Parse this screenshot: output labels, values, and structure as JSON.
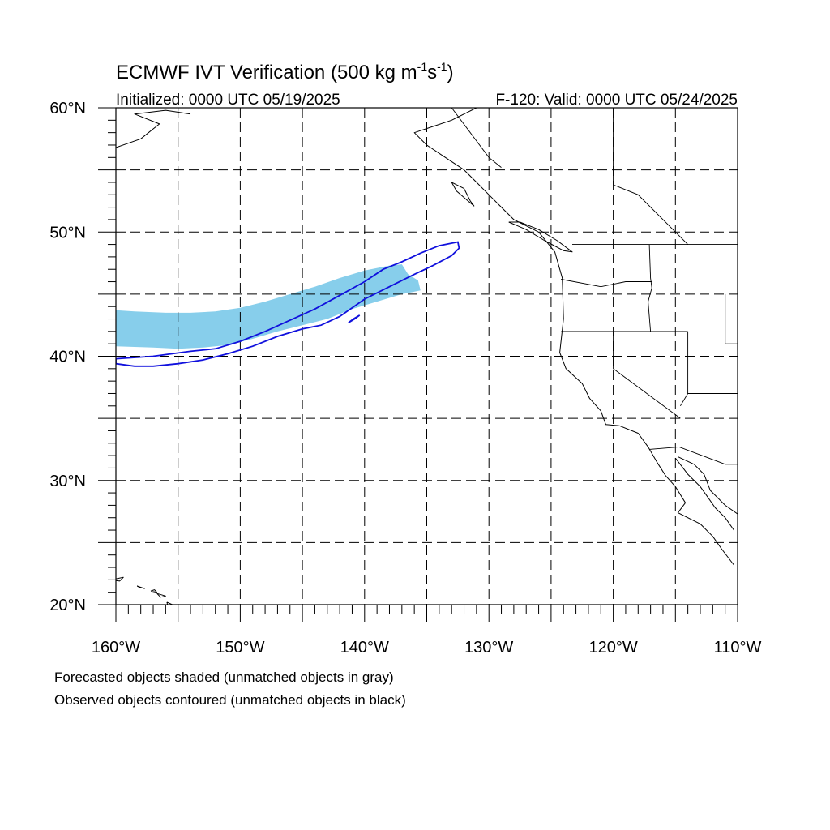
{
  "title": {
    "prefix": "ECMWF IVT Verification (500 kg m",
    "exp1": "-1",
    "mid": "s",
    "exp2": "-1",
    "suffix": ")"
  },
  "subtitle_left": "Initialized: 0000 UTC 05/19/2025",
  "subtitle_right": "F-120: Valid: 0000 UTC 05/24/2025",
  "map": {
    "lon_range": [
      -160,
      -110
    ],
    "lat_range": [
      20,
      60
    ],
    "lat_labels": [
      {
        "lat": 60,
        "text": "60°N"
      },
      {
        "lat": 50,
        "text": "50°N"
      },
      {
        "lat": 40,
        "text": "40°N"
      },
      {
        "lat": 30,
        "text": "30°N"
      },
      {
        "lat": 20,
        "text": "20°N"
      }
    ],
    "lon_labels": [
      {
        "lon": -160,
        "text": "160°W"
      },
      {
        "lon": -150,
        "text": "150°W"
      },
      {
        "lon": -140,
        "text": "140°W"
      },
      {
        "lon": -130,
        "text": "130°W"
      },
      {
        "lon": -120,
        "text": "120°W"
      },
      {
        "lon": -110,
        "text": "110°W"
      }
    ],
    "gridline_style": "dashed",
    "gridline_spacing_deg": 5,
    "colors": {
      "forecast_shade": "#87ceeb",
      "observed_contour": "#1010dd",
      "coastline": "#000000",
      "grid": "#000000"
    },
    "forecast_object": [
      [
        -160,
        43.7
      ],
      [
        -158.5,
        43.6
      ],
      [
        -156,
        43.5
      ],
      [
        -154,
        43.5
      ],
      [
        -152,
        43.6
      ],
      [
        -150,
        43.9
      ],
      [
        -148,
        44.4
      ],
      [
        -146,
        45.0
      ],
      [
        -144,
        45.6
      ],
      [
        -142,
        46.3
      ],
      [
        -140,
        46.9
      ],
      [
        -138,
        47.3
      ],
      [
        -137,
        47.4
      ],
      [
        -136.5,
        46.6
      ],
      [
        -135.7,
        46.1
      ],
      [
        -135.5,
        45.3
      ],
      [
        -137,
        45.0
      ],
      [
        -139,
        44.4
      ],
      [
        -141,
        43.8
      ],
      [
        -143,
        43.0
      ],
      [
        -145,
        42.5
      ],
      [
        -147,
        42.0
      ],
      [
        -149,
        41.4
      ],
      [
        -151,
        40.9
      ],
      [
        -153,
        40.7
      ],
      [
        -155,
        40.6
      ],
      [
        -157,
        40.7
      ],
      [
        -160,
        40.8
      ]
    ],
    "observed_object": [
      [
        -160,
        39.8
      ],
      [
        -157,
        40.0
      ],
      [
        -154,
        40.4
      ],
      [
        -152,
        40.6
      ],
      [
        -150,
        41.2
      ],
      [
        -148,
        42.0
      ],
      [
        -146,
        42.9
      ],
      [
        -144,
        43.8
      ],
      [
        -142,
        44.9
      ],
      [
        -140,
        46.0
      ],
      [
        -138.5,
        47.0
      ],
      [
        -137,
        47.6
      ],
      [
        -135.5,
        48.3
      ],
      [
        -134,
        48.9
      ],
      [
        -132.5,
        49.2
      ],
      [
        -132.4,
        48.7
      ],
      [
        -133,
        48.1
      ],
      [
        -134.5,
        47.3
      ],
      [
        -136,
        46.6
      ],
      [
        -138,
        45.6
      ],
      [
        -140,
        44.6
      ],
      [
        -142,
        43.2
      ],
      [
        -143.5,
        42.5
      ],
      [
        -145,
        42.2
      ],
      [
        -147,
        41.6
      ],
      [
        -149,
        40.8
      ],
      [
        -151,
        40.2
      ],
      [
        -153,
        39.7
      ],
      [
        -155,
        39.4
      ],
      [
        -157,
        39.2
      ],
      [
        -158.5,
        39.2
      ],
      [
        -160,
        39.4
      ]
    ],
    "observed_fragment": [
      [
        -141.3,
        42.7
      ],
      [
        -140.8,
        43.0
      ],
      [
        -140.4,
        43.3
      ],
      [
        -140.9,
        43.0
      ],
      [
        -141.3,
        42.7
      ]
    ],
    "coastline": [
      [
        -131.0,
        60.0
      ],
      [
        -133.0,
        59.0
      ],
      [
        -134.5,
        58.5
      ],
      [
        -136.0,
        58.0
      ],
      [
        -135.0,
        57.0
      ],
      [
        -133.5,
        56.0
      ],
      [
        -132.0,
        55.0
      ],
      [
        -131.0,
        54.0
      ],
      [
        -130.0,
        53.0
      ],
      [
        -129.0,
        52.0
      ],
      [
        -128.0,
        51.0
      ],
      [
        -126.0,
        50.0
      ],
      [
        -124.7,
        48.4
      ],
      [
        -124.1,
        46.3
      ],
      [
        -124.0,
        43.0
      ],
      [
        -124.3,
        40.3
      ],
      [
        -123.8,
        39.0
      ],
      [
        -122.5,
        37.8
      ],
      [
        -121.9,
        36.6
      ],
      [
        -121.0,
        35.6
      ],
      [
        -120.6,
        34.5
      ],
      [
        -119.5,
        34.4
      ],
      [
        -118.0,
        33.8
      ],
      [
        -117.2,
        32.7
      ],
      [
        -116.5,
        31.5
      ],
      [
        -115.8,
        30.4
      ],
      [
        -115.0,
        29.5
      ],
      [
        -114.2,
        28.2
      ],
      [
        -114.8,
        27.4
      ],
      [
        -113.0,
        26.5
      ],
      [
        -112.0,
        25.5
      ],
      [
        -111.3,
        24.5
      ],
      [
        -110.3,
        23.2
      ]
    ],
    "gulf_coast": [
      [
        -115.0,
        31.8
      ],
      [
        -114.0,
        30.5
      ],
      [
        -113.0,
        29.5
      ],
      [
        -112.5,
        28.8
      ],
      [
        -111.8,
        27.8
      ],
      [
        -111.0,
        27.0
      ],
      [
        -110.3,
        26.0
      ]
    ],
    "mainland_mexico_coast": [
      [
        -114.8,
        31.9
      ],
      [
        -113.5,
        31.3
      ],
      [
        -112.7,
        30.5
      ],
      [
        -112.2,
        29.2
      ],
      [
        -111.0,
        28.0
      ],
      [
        -110.0,
        27.3
      ]
    ],
    "vancouver_island": [
      [
        -128.4,
        50.8
      ],
      [
        -127.0,
        50.2
      ],
      [
        -125.5,
        49.3
      ],
      [
        -124.0,
        48.5
      ],
      [
        -123.3,
        48.4
      ],
      [
        -124.5,
        49.3
      ],
      [
        -126.0,
        50.2
      ],
      [
        -127.5,
        50.8
      ],
      [
        -128.4,
        50.8
      ]
    ],
    "haida_gwaii": [
      [
        -133.0,
        54.0
      ],
      [
        -132.0,
        53.5
      ],
      [
        -131.5,
        52.5
      ],
      [
        -131.2,
        52.1
      ],
      [
        -131.8,
        52.6
      ],
      [
        -132.6,
        53.3
      ],
      [
        -133.0,
        54.0
      ]
    ],
    "alaska_coast": [
      [
        -160,
        56.8
      ],
      [
        -158,
        57.5
      ],
      [
        -156.5,
        58.7
      ],
      [
        -158.5,
        59.5
      ],
      [
        -156,
        59.8
      ],
      [
        -154,
        59.5
      ]
    ],
    "hawaii_islands": [
      [
        [
          -160.4,
          22.0
        ],
        [
          -159.4,
          22.2
        ],
        [
          -159.7,
          21.9
        ],
        [
          -160.4,
          22.0
        ]
      ],
      [
        [
          -158.3,
          21.5
        ],
        [
          -157.7,
          21.3
        ],
        [
          -158.1,
          21.4
        ],
        [
          -158.3,
          21.5
        ]
      ],
      [
        [
          -157.2,
          21.1
        ],
        [
          -156.7,
          21.0
        ],
        [
          -156.9,
          21.2
        ],
        [
          -157.2,
          21.1
        ]
      ],
      [
        [
          -156.7,
          20.9
        ],
        [
          -156.0,
          20.7
        ],
        [
          -156.4,
          20.6
        ],
        [
          -156.7,
          20.9
        ]
      ],
      [
        [
          -155.9,
          20.2
        ],
        [
          -155.0,
          19.8
        ],
        [
          -155.6,
          19.0
        ],
        [
          -155.9,
          20.2
        ]
      ]
    ],
    "borders": [
      [
        [
          -123.3,
          49.0
        ],
        [
          -110,
          49.0
        ]
      ],
      [
        [
          -124.2,
          46.2
        ],
        [
          -121.0,
          45.6
        ],
        [
          -119.0,
          46.0
        ],
        [
          -116.9,
          46.0
        ]
      ],
      [
        [
          -117.1,
          49.0
        ],
        [
          -117.0,
          46.3
        ],
        [
          -116.9,
          45.5
        ],
        [
          -117.2,
          44.4
        ],
        [
          -117.0,
          42.0
        ]
      ],
      [
        [
          -124.2,
          42.0
        ],
        [
          -114.0,
          42.0
        ]
      ],
      [
        [
          -120.0,
          42.0
        ],
        [
          -120.0,
          39.0
        ],
        [
          -114.6,
          35.0
        ]
      ],
      [
        [
          -114.0,
          42.0
        ],
        [
          -114.0,
          37.0
        ],
        [
          -114.6,
          36.0
        ]
      ],
      [
        [
          -114.0,
          37.0
        ],
        [
          -110,
          37.0
        ]
      ],
      [
        [
          -111.0,
          45.0
        ],
        [
          -111.0,
          41.0
        ],
        [
          -110,
          41.0
        ]
      ],
      [
        [
          -117.1,
          32.5
        ],
        [
          -114.7,
          32.7
        ],
        [
          -111.0,
          31.3
        ],
        [
          -110,
          31.3
        ]
      ],
      [
        [
          -133.0,
          60.0
        ],
        [
          -130.0,
          56.0
        ],
        [
          -129.0,
          55.2
        ]
      ],
      [
        [
          -120.0,
          60.0
        ],
        [
          -120.0,
          53.8
        ],
        [
          -118.0,
          53.0
        ],
        [
          -116.0,
          51.0
        ],
        [
          -114.0,
          49.0
        ]
      ]
    ]
  },
  "captions": [
    "Forecasted objects shaded (unmatched objects in gray)",
    "Observed objects contoured (unmatched objects in black)"
  ]
}
